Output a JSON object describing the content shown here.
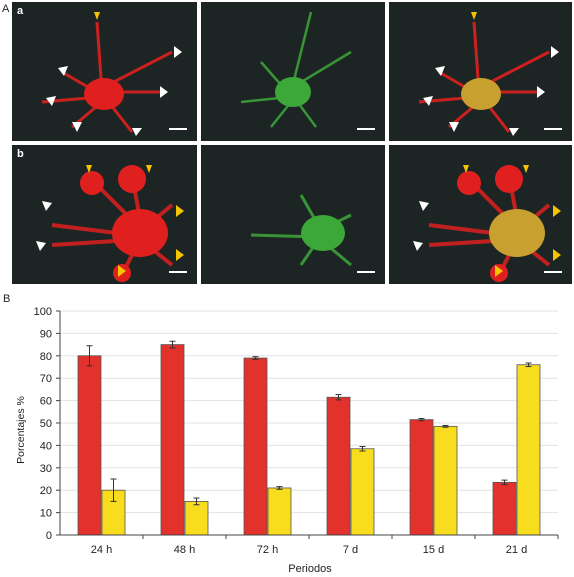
{
  "panel_A": {
    "label": "A",
    "rows": [
      {
        "label": "a",
        "channels": [
          "red",
          "green",
          "merge"
        ]
      },
      {
        "label": "b",
        "channels": [
          "red",
          "green",
          "merge"
        ]
      }
    ],
    "colors": {
      "red": "#e0201f",
      "green": "#3da83a",
      "merge": "#c8a030",
      "white_arrow": "#ffffff",
      "yellow_arrow": "#f5c400"
    }
  },
  "panel_B_label": "B",
  "chart_data": {
    "type": "bar",
    "categories": [
      "24 h",
      "48 h",
      "72 h",
      "7 d",
      "15 d",
      "21 d"
    ],
    "series": [
      {
        "values": [
          80,
          85,
          79,
          61.5,
          51.5,
          23.5
        ],
        "errors": [
          4.5,
          1.5,
          0.6,
          1.2,
          0.5,
          1.0
        ],
        "color": "#e3312b"
      },
      {
        "values": [
          20,
          15,
          21,
          38.5,
          48.5,
          76
        ],
        "errors": [
          5,
          1.5,
          0.6,
          1.0,
          0.4,
          0.8
        ],
        "color": "#f7dd1e"
      }
    ],
    "xlabel": "Periodos",
    "ylabel": "Porcentajes %",
    "ylim": [
      0,
      100
    ],
    "yticks": [
      0,
      10,
      20,
      30,
      40,
      50,
      60,
      70,
      80,
      90,
      100
    ],
    "grid": true
  }
}
